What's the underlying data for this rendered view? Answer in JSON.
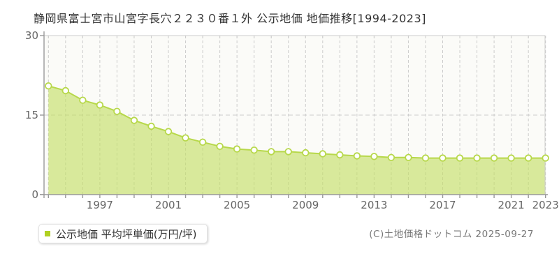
{
  "title": "静岡県富士宮市山宮字長穴２２３０番１外 公示地価 地価推移[1994-2023]",
  "legend": {
    "label": "公示地価 平均坪単価(万円/坪)"
  },
  "copyright": "(C)土地価格ドットコム 2025-09-27",
  "colors": {
    "area_fill": "rgba(197,222,105,0.65)",
    "line": "#b7d84a",
    "marker_fill": "#ffffff",
    "marker_stroke": "#b7d84a",
    "grid": "#cccccc",
    "axis": "#999999",
    "border": "#cccccc",
    "plot_bg": "#fbfbf8",
    "legend_marker": "#b0d022"
  },
  "chart_data": {
    "type": "area",
    "title": "静岡県富士宮市山宮字長穴２２３０番１外 公示地価 地価推移[1994-2023]",
    "series_name": "公示地価 平均坪単価(万円/坪)",
    "x": [
      1994,
      1995,
      1996,
      1997,
      1998,
      1999,
      2000,
      2001,
      2002,
      2003,
      2004,
      2005,
      2006,
      2007,
      2008,
      2009,
      2010,
      2011,
      2012,
      2013,
      2014,
      2015,
      2016,
      2017,
      2018,
      2019,
      2020,
      2021,
      2022,
      2023
    ],
    "values": [
      20.5,
      19.6,
      17.8,
      16.9,
      15.7,
      14.0,
      12.9,
      11.9,
      10.7,
      9.9,
      9.1,
      8.6,
      8.4,
      8.1,
      8.1,
      7.9,
      7.7,
      7.5,
      7.3,
      7.2,
      7.0,
      7.0,
      6.9,
      6.9,
      6.9,
      6.9,
      6.9,
      6.9,
      6.9,
      6.9
    ],
    "xlabel": "",
    "ylabel": "万円/坪",
    "ylim": [
      0,
      30
    ],
    "y_ticks": [
      0,
      15,
      30
    ],
    "x_tick_labels": [
      1997,
      2001,
      2005,
      2009,
      2013,
      2017,
      2021,
      2023
    ],
    "grid": "dashed",
    "legend_position": "bottom-left"
  }
}
